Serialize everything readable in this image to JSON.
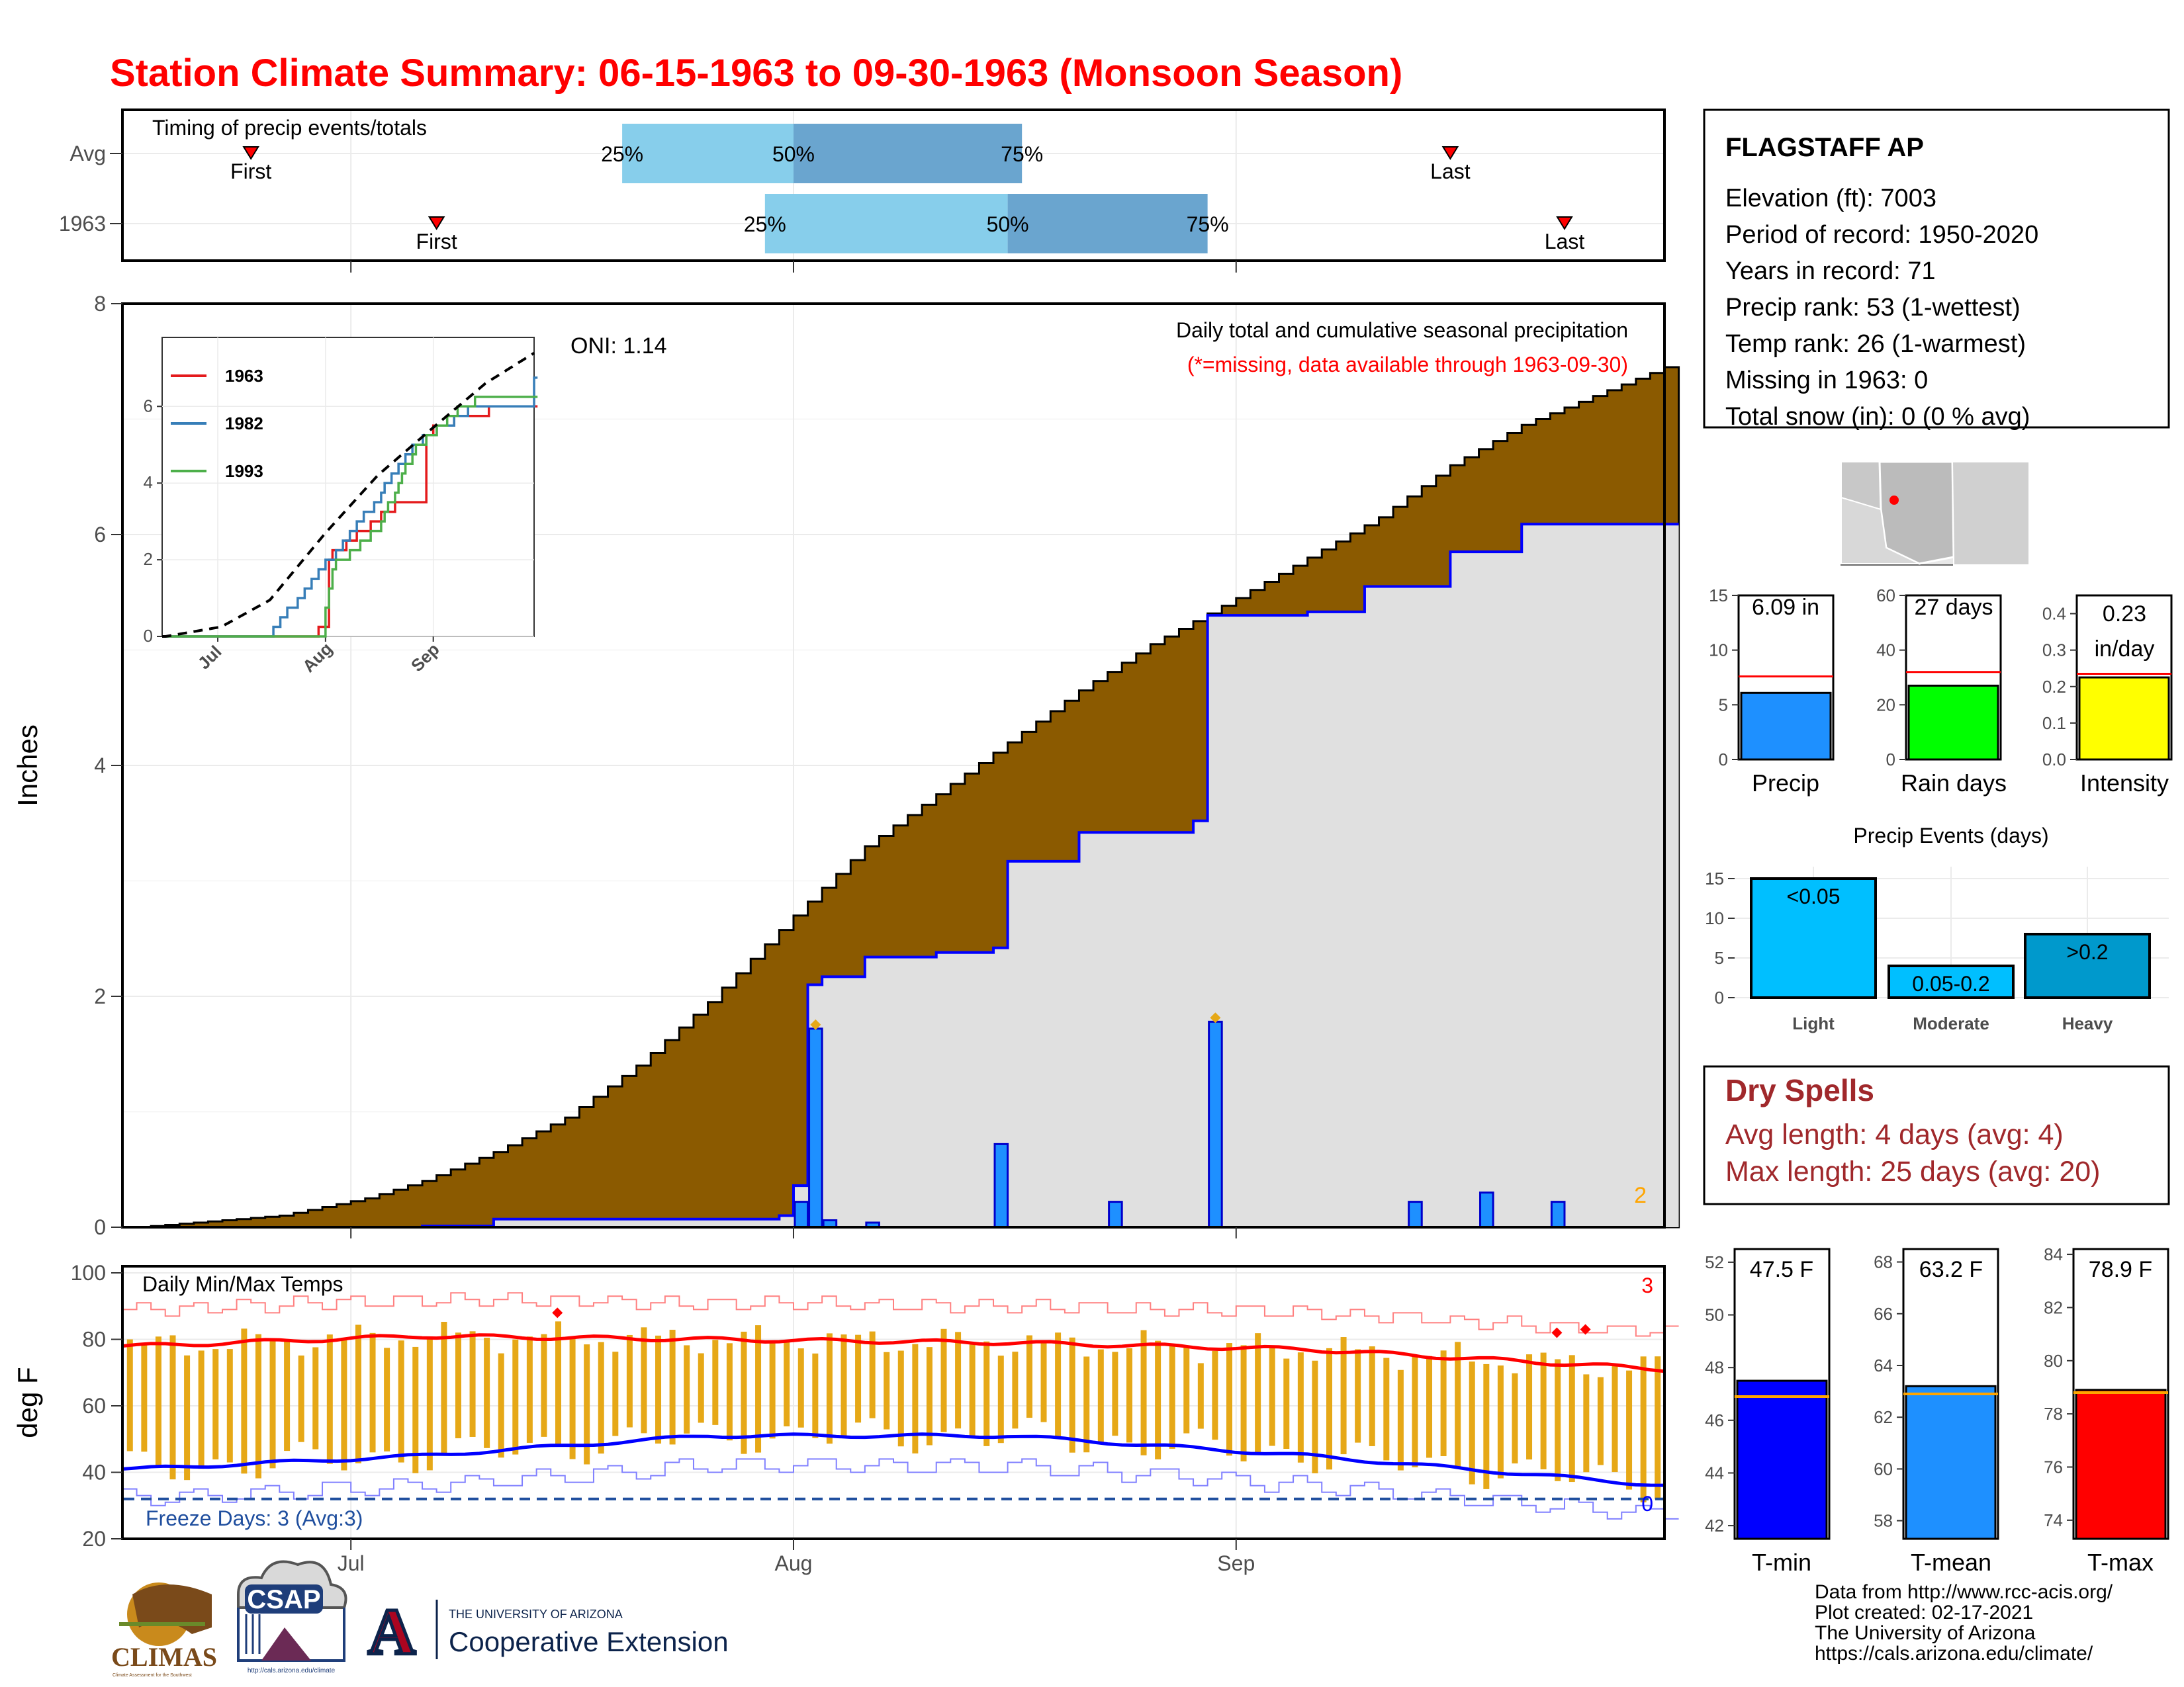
{
  "title": "Station Climate Summary: 06-15-1963 to 09-30-1963 (Monsoon Season)",
  "colors": {
    "title": "#ff0000",
    "cumulative_avg_fill": "#8b5a00",
    "cumulative_1963_fill": "#e0e0e0",
    "line_1963": "#0000ff",
    "daily_bar": "#1e90ff",
    "temp_bar": "#e6a817",
    "tmax_line": "#ff0000",
    "tmin_line": "#0000ff",
    "freeze_line": "#1f4e9e",
    "dry_spell_text": "#a0282b"
  },
  "timing": {
    "title": "Timing of precip events/totals",
    "rows": [
      {
        "label": "Avg",
        "first_label": "First",
        "last_label": "Last",
        "first": "06-23",
        "q25": "07-19",
        "q50": "07-31",
        "q75": "08-16",
        "last": "09-15",
        "q25_label": "25%",
        "q50_label": "50%",
        "q75_label": "75%"
      },
      {
        "label": "1963",
        "first_label": "First",
        "last_label": "Last",
        "first": "07-06",
        "q25": "07-29",
        "q50": "08-15",
        "q75": "08-29",
        "last": "09-23",
        "q25_label": "25%",
        "q50_label": "50%",
        "q75_label": "75%"
      }
    ]
  },
  "precip_panel": {
    "subtitle": "Daily total and cumulative seasonal precipitation",
    "note": "(*=missing, data available through 1963-09-30)",
    "ylabel": "Inches",
    "oni": "ONI: 1.14",
    "corner_count": "2",
    "y_ticks": [
      "0",
      "2",
      "4",
      "6",
      "8"
    ],
    "x_ticks": [
      "Jul",
      "Aug",
      "Sep"
    ]
  },
  "inset": {
    "legend": [
      "1963",
      "1982",
      "1993"
    ],
    "legend_colors": [
      "#e41a1c",
      "#377eb8",
      "#4daf4a"
    ],
    "y_ticks": [
      "0",
      "2",
      "4",
      "6"
    ],
    "x_ticks": [
      "Jul",
      "Aug",
      "Sep"
    ]
  },
  "temp_panel": {
    "title": "Daily Min/Max Temps",
    "ylabel": "deg F",
    "freeze": "Freeze Days: 3 (Avg:3)",
    "red_count": "3",
    "blue_count": "0",
    "y_ticks": [
      "20",
      "40",
      "60",
      "80",
      "100"
    ],
    "x_ticks": [
      "Jul",
      "Aug",
      "Sep"
    ]
  },
  "station": {
    "name": "FLAGSTAFF AP",
    "lines": [
      "Elevation (ft): 7003",
      "Period of record: 1950-2020",
      "Years in record: 71",
      "Precip rank: 53 (1-wettest)",
      "Temp rank: 26 (1-warmest)",
      "Missing in 1963: 0",
      "Total snow (in): 0 (0 % avg)"
    ]
  },
  "mini_bars": [
    {
      "label": "Precip",
      "value_label": "6.09 in",
      "color": "#1e90ff",
      "value": 6.09,
      "avg": 7.6,
      "ymax": 15,
      "ticks": [
        "0",
        "5",
        "10",
        "15"
      ]
    },
    {
      "label": "Rain days",
      "value_label": "27 days",
      "color": "#00ff00",
      "value": 27,
      "avg": 32,
      "ymax": 60,
      "ticks": [
        "0",
        "20",
        "40",
        "60"
      ]
    },
    {
      "label": "Intensity",
      "value_label_1": "0.23",
      "value_label_2": "in/day",
      "color": "#ffff00",
      "value": 0.225,
      "avg": 0.235,
      "ymax": 0.45,
      "ticks": [
        "0.0",
        "0.1",
        "0.2",
        "0.3",
        "0.4"
      ]
    }
  ],
  "events": {
    "title": "Precip Events (days)",
    "bars": [
      {
        "label": "Light",
        "inside": "<0.05",
        "value": 15,
        "color": "#00bfff"
      },
      {
        "label": "Moderate",
        "inside": "0.05-0.2",
        "value": 4,
        "color": "#00bfff"
      },
      {
        "label": "Heavy",
        "inside": ">0.2",
        "value": 8,
        "color": "#0099cc"
      }
    ],
    "ticks": [
      "0",
      "5",
      "10",
      "15"
    ]
  },
  "dry_spells": {
    "title": "Dry Spells",
    "avg": "Avg length: 4 days (avg: 4)",
    "max": "Max length: 25 days (avg: 20)"
  },
  "temp_bars": [
    {
      "label": "T-min",
      "value_label": "47.5 F",
      "color": "#0000ff",
      "value": 47.5,
      "avg": 46.9,
      "ymin": 41.5,
      "ymax": 52.5,
      "ticks": [
        "42",
        "44",
        "46",
        "48",
        "50",
        "52"
      ]
    },
    {
      "label": "T-mean",
      "value_label": "63.2 F",
      "color": "#1e90ff",
      "value": 63.2,
      "avg": 62.9,
      "ymin": 57.3,
      "ymax": 68.5,
      "ticks": [
        "58",
        "60",
        "62",
        "64",
        "66",
        "68"
      ]
    },
    {
      "label": "T-max",
      "value_label": "78.9 F",
      "color": "#ff0000",
      "value": 78.9,
      "avg": 78.8,
      "ymin": 73.3,
      "ymax": 84.2,
      "ticks": [
        "74",
        "76",
        "78",
        "80",
        "82",
        "84"
      ]
    }
  ],
  "credits": [
    "Data from http://www.rcc-acis.org/",
    "Plot created: 02-17-2021",
    "The University of Arizona",
    "https://cals.arizona.edu/climate/"
  ],
  "logos": {
    "climas": "CLIMAS",
    "climas_sub": "Climate Assessment for the Southwest",
    "csap": "CSAP",
    "csap_url": "http://cals.arizona.edu/climate",
    "ua_top": "THE UNIVERSITY OF ARIZONA",
    "ua_bottom": "Cooperative Extension",
    "ua_letter": "A"
  },
  "chart_data": [
    {
      "type": "area",
      "title": "Daily total and cumulative seasonal precipitation",
      "ylabel": "Inches",
      "ylim": [
        0,
        8
      ],
      "x_range": [
        "1963-06-15",
        "1963-09-30"
      ],
      "series": [
        {
          "name": "Avg cumulative",
          "x": [
            "06-15",
            "06-25",
            "07-01",
            "07-05",
            "07-10",
            "07-15",
            "07-20",
            "07-25",
            "07-31",
            "08-05",
            "08-10",
            "08-15",
            "08-20",
            "08-25",
            "08-31",
            "09-05",
            "09-10",
            "09-15",
            "09-20",
            "09-25",
            "09-30"
          ],
          "values": [
            0.0,
            0.1,
            0.25,
            0.4,
            0.65,
            0.95,
            1.4,
            1.95,
            2.7,
            3.3,
            3.75,
            4.2,
            4.65,
            5.05,
            5.45,
            5.8,
            6.15,
            6.6,
            6.95,
            7.2,
            7.45
          ]
        },
        {
          "name": "1963 cumulative",
          "x": [
            "06-15",
            "07-05",
            "07-10",
            "07-30",
            "07-31",
            "08-01",
            "08-02",
            "08-05",
            "08-10",
            "08-14",
            "08-15",
            "08-20",
            "08-28",
            "08-29",
            "09-05",
            "09-09",
            "09-15",
            "09-20",
            "09-30"
          ],
          "values": [
            0.0,
            0.01,
            0.07,
            0.1,
            0.36,
            2.1,
            2.17,
            2.34,
            2.38,
            2.42,
            3.17,
            3.42,
            3.52,
            5.3,
            5.33,
            5.55,
            5.85,
            6.09,
            6.09
          ]
        }
      ],
      "daily_bars": {
        "x": [
          "07-31",
          "08-01",
          "08-02",
          "08-05",
          "08-14",
          "08-22",
          "08-29",
          "09-12",
          "09-17",
          "09-22"
        ],
        "values": [
          0.22,
          1.72,
          0.06,
          0.04,
          0.72,
          0.22,
          1.78,
          0.22,
          0.3,
          0.22
        ]
      },
      "oni": 1.14
    },
    {
      "type": "line",
      "title": "inset",
      "series": [
        {
          "name": "1963",
          "x": [
            "06-15",
            "07-28",
            "07-31",
            "08-01",
            "08-20",
            "08-28",
            "08-29",
            "09-10",
            "09-30"
          ],
          "values": [
            0,
            0.1,
            0.36,
            2.1,
            3.4,
            3.5,
            5.3,
            5.8,
            6.09
          ]
        },
        {
          "name": "1982",
          "x": [
            "06-15",
            "07-15",
            "07-25",
            "08-01",
            "08-15",
            "08-25",
            "09-10",
            "09-28",
            "09-30"
          ],
          "values": [
            0,
            0.05,
            1.2,
            2.0,
            3.6,
            5.0,
            5.9,
            5.9,
            7.8
          ]
        },
        {
          "name": "1993",
          "x": [
            "06-15",
            "07-30",
            "08-02",
            "08-15",
            "08-25",
            "09-05",
            "09-15",
            "09-30"
          ],
          "values": [
            0,
            0.1,
            1.8,
            2.8,
            4.8,
            5.8,
            6.3,
            6.2
          ]
        },
        {
          "name": "Avg",
          "x": [
            "06-15",
            "07-01",
            "07-15",
            "07-31",
            "08-15",
            "08-31",
            "09-15",
            "09-30"
          ],
          "values": [
            0,
            0.25,
            0.95,
            2.7,
            4.2,
            5.45,
            6.6,
            7.45
          ]
        }
      ]
    },
    {
      "type": "bar",
      "title": "Daily Min/Max Temps",
      "ylabel": "deg F",
      "ylim": [
        20,
        100
      ],
      "series": [
        {
          "name": "Avg Tmax",
          "x": [
            "06-15",
            "07-05",
            "07-25",
            "08-15",
            "09-05",
            "09-30"
          ],
          "values": [
            78,
            81,
            80,
            79,
            77,
            71
          ]
        },
        {
          "name": "Avg Tmin",
          "x": [
            "06-15",
            "07-05",
            "07-25",
            "08-15",
            "09-05",
            "09-30"
          ],
          "values": [
            41,
            45,
            51,
            51,
            45,
            36
          ]
        }
      ],
      "freeze_line": 32
    }
  ]
}
